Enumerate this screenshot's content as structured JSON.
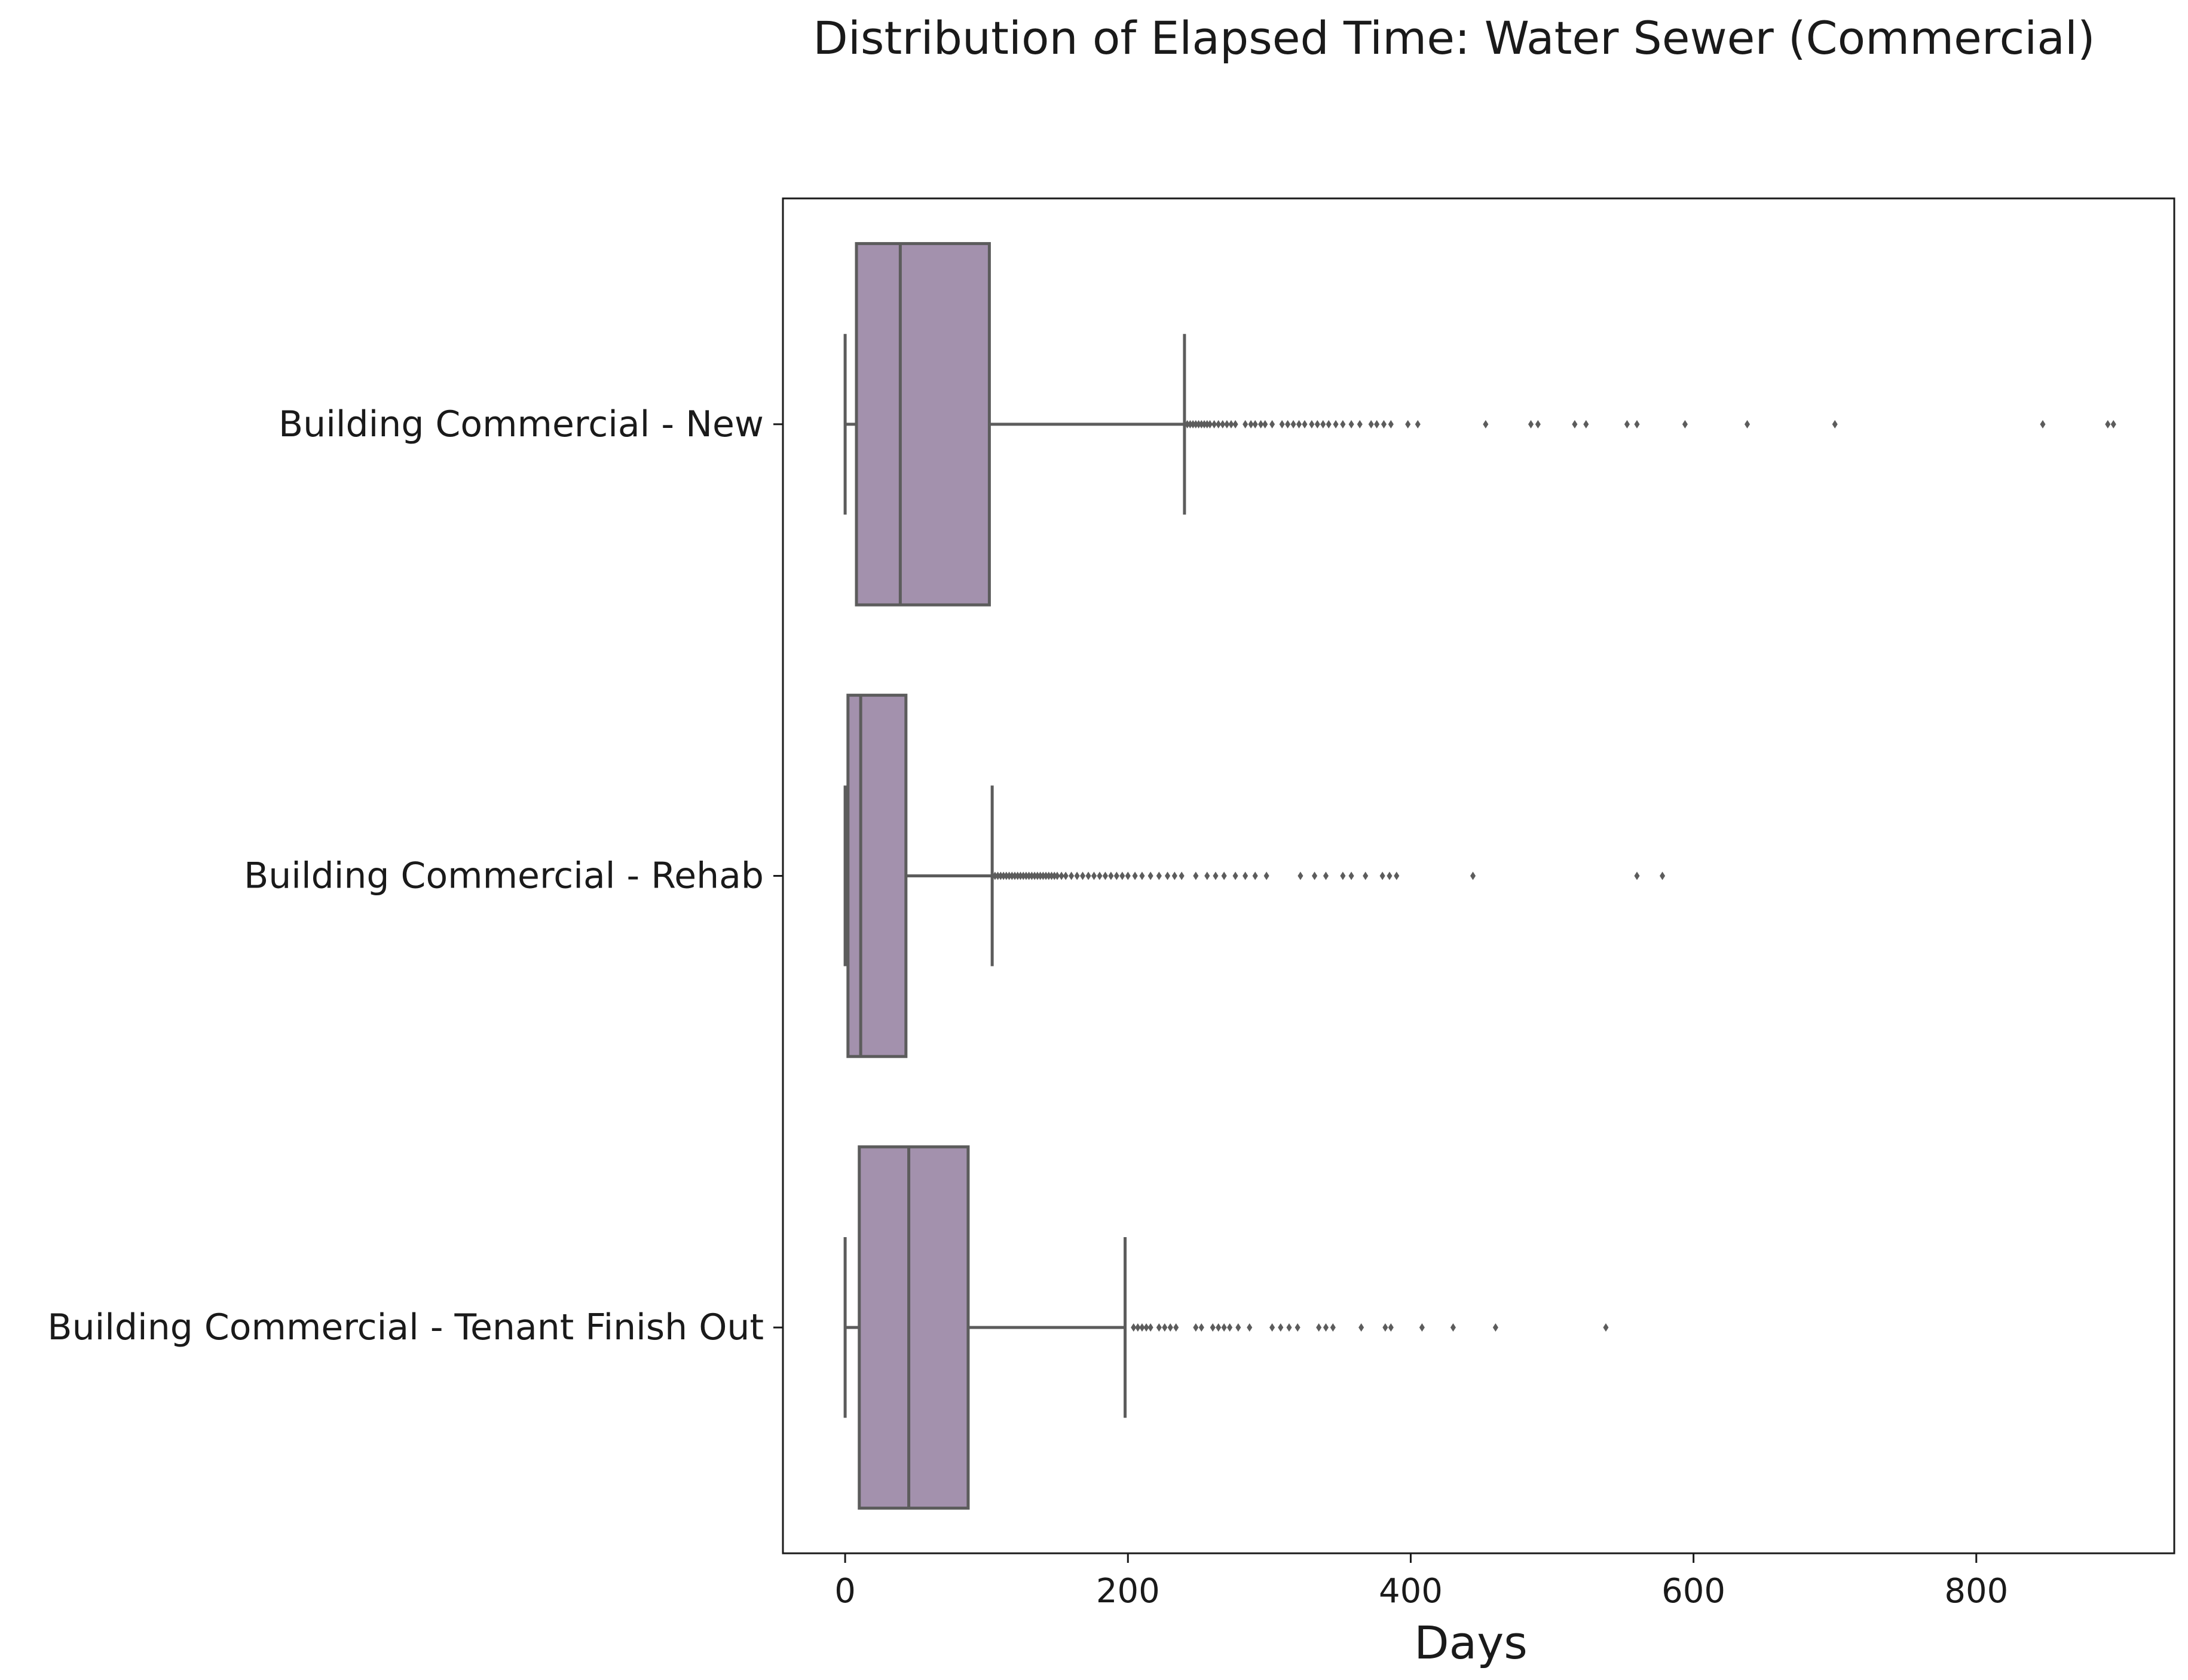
{
  "chart_data": {
    "type": "boxplot",
    "orientation": "horizontal",
    "title": "Distribution of Elapsed Time: Water Sewer (Commercial)",
    "xlabel": "Days",
    "ylabel": "",
    "xlim": [
      -44,
      940
    ],
    "xticks": [
      0,
      200,
      400,
      600,
      800
    ],
    "grid": false,
    "colors": {
      "box_fill": "#a391ad",
      "line": "#5c5c5c",
      "outlier": "#5c5c5c"
    },
    "categories": [
      "Building Commercial - New",
      "Building Commercial - Rehab",
      "Building Commercial - Tenant Finish Out"
    ],
    "boxes": [
      {
        "category": "Building Commercial - New",
        "whisker_low": 0,
        "q1": 8,
        "median": 39,
        "q3": 102,
        "whisker_high": 240,
        "outliers": [
          242,
          244,
          246,
          248,
          250,
          252,
          254,
          256,
          258,
          261,
          264,
          267,
          270,
          273,
          276,
          283,
          287,
          290,
          294,
          297,
          302,
          309,
          313,
          317,
          321,
          325,
          330,
          334,
          338,
          342,
          347,
          352,
          358,
          364,
          372,
          376,
          381,
          386,
          398,
          405,
          453,
          485,
          490,
          516,
          524,
          553,
          560,
          594,
          638,
          700,
          847,
          893,
          897
        ]
      },
      {
        "category": "Building Commercial - Rehab",
        "whisker_low": 0,
        "q1": 2,
        "median": 11,
        "q3": 43,
        "whisker_high": 104,
        "outliers": [
          106,
          108,
          110,
          112,
          114,
          116,
          118,
          120,
          122,
          124,
          126,
          128,
          130,
          132,
          134,
          136,
          138,
          140,
          142,
          144,
          146,
          148,
          150,
          153,
          156,
          160,
          164,
          168,
          172,
          176,
          180,
          184,
          188,
          192,
          196,
          200,
          205,
          210,
          216,
          222,
          228,
          233,
          238,
          248,
          256,
          262,
          268,
          276,
          283,
          290,
          298,
          322,
          332,
          340,
          352,
          358,
          368,
          380,
          385,
          390,
          444,
          560,
          578
        ]
      },
      {
        "category": "Building Commercial - Tenant Finish Out",
        "whisker_low": 0,
        "q1": 10,
        "median": 45,
        "q3": 87,
        "whisker_high": 198,
        "outliers": [
          204,
          207,
          210,
          213,
          216,
          222,
          226,
          230,
          234,
          248,
          252,
          260,
          264,
          268,
          272,
          278,
          286,
          302,
          308,
          314,
          320,
          335,
          340,
          345,
          365,
          382,
          386,
          408,
          430,
          460,
          538
        ]
      }
    ]
  }
}
